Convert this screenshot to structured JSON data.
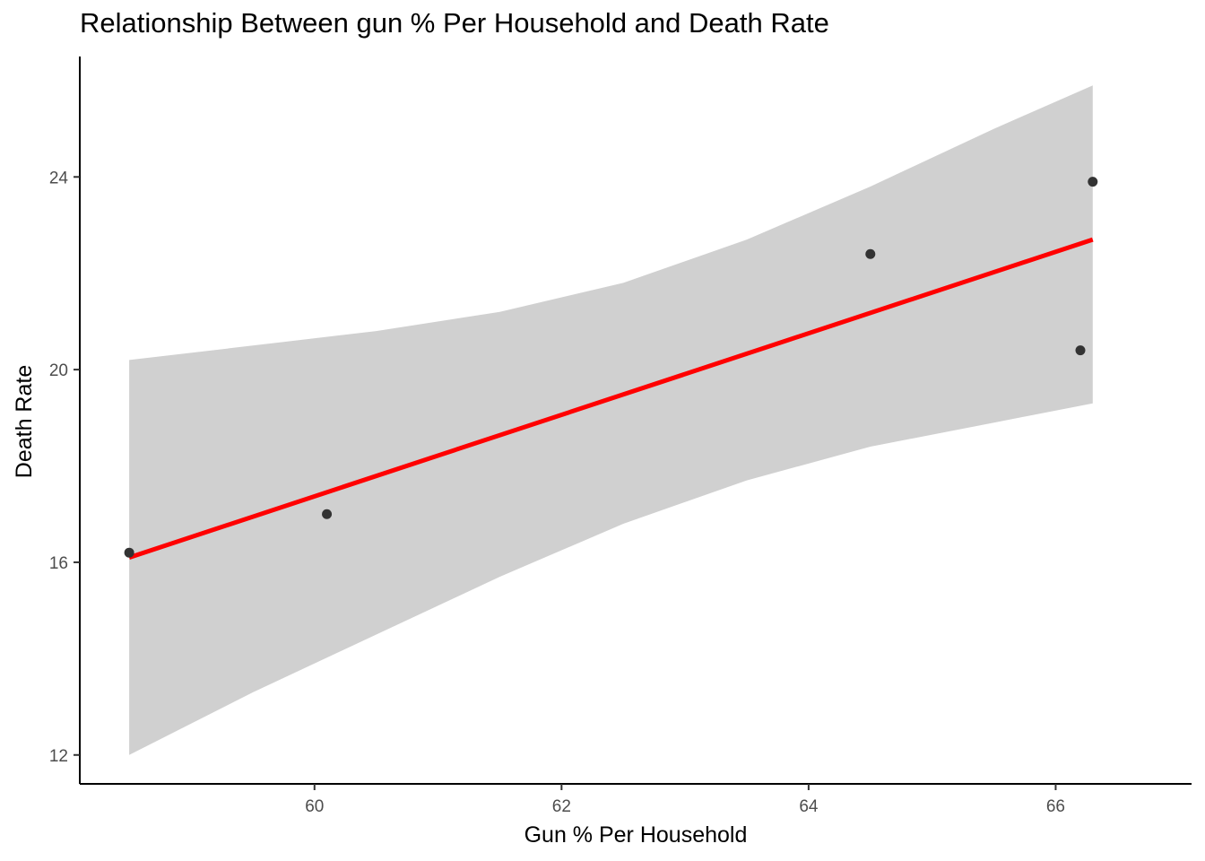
{
  "chart_data": {
    "type": "scatter",
    "title": "Relationship Between gun % Per Household and Death Rate",
    "xlabel": "Gun % Per Household",
    "ylabel": "Death Rate",
    "xlim": [
      58.1,
      67.1
    ],
    "ylim": [
      11.4,
      26.5
    ],
    "x_ticks": [
      60,
      62,
      64,
      66
    ],
    "y_ticks": [
      12,
      16,
      20,
      24
    ],
    "grid": false,
    "points": [
      {
        "x": 58.5,
        "y": 16.2
      },
      {
        "x": 60.1,
        "y": 17.0
      },
      {
        "x": 64.5,
        "y": 22.4
      },
      {
        "x": 66.2,
        "y": 20.4
      },
      {
        "x": 66.3,
        "y": 23.9
      }
    ],
    "fit": {
      "method": "linear",
      "x_start": 58.5,
      "x_end": 66.3,
      "y_start": 16.1,
      "y_end": 22.7,
      "color": "#ff0000"
    },
    "confidence_band": {
      "x": [
        58.5,
        59.5,
        60.5,
        61.5,
        62.5,
        63.5,
        64.5,
        65.5,
        66.3
      ],
      "lower": [
        12.0,
        13.3,
        14.5,
        15.7,
        16.8,
        17.7,
        18.4,
        18.9,
        19.3
      ],
      "upper": [
        20.2,
        20.5,
        20.8,
        21.2,
        21.8,
        22.7,
        23.8,
        25.0,
        25.9
      ],
      "color": "#d0d0d0"
    },
    "point_color": "#333333"
  }
}
